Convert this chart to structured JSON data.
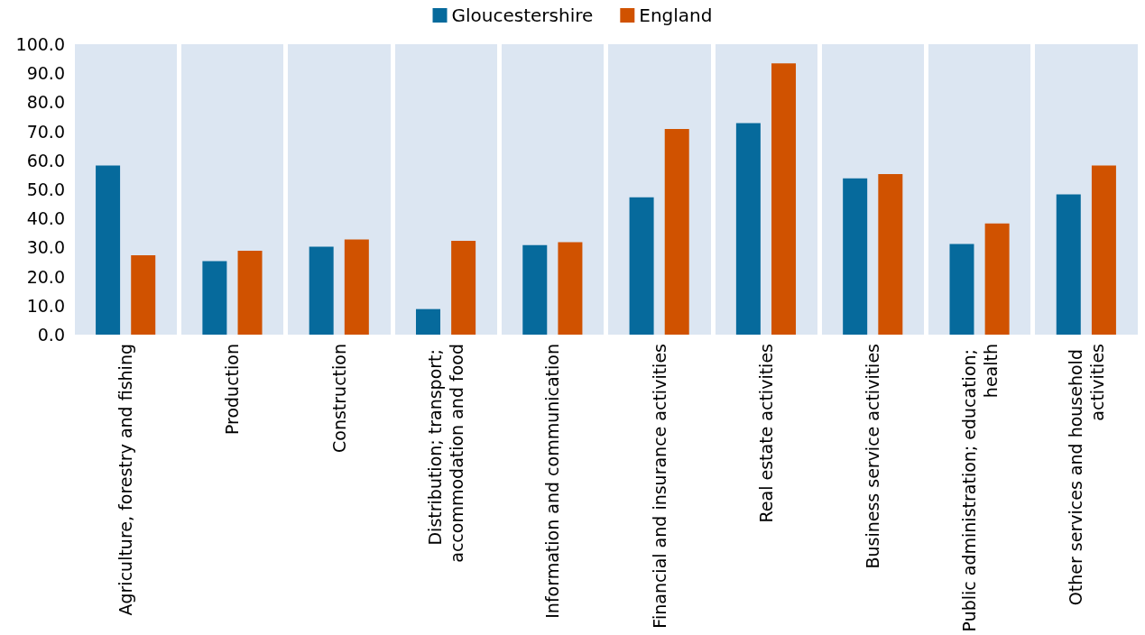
{
  "chart_data": {
    "type": "bar",
    "categories": [
      "Agriculture, forestry and fishing",
      "Production",
      "Construction",
      "Distribution; transport; accommodation and food",
      "Information and communication",
      "Financial and insurance activities",
      "Real estate activities",
      "Business service activities",
      "Public administration; education; health",
      "Other services and household activities"
    ],
    "series": [
      {
        "name": "Gloucestershire",
        "color": "#066a9c",
        "values": [
          58.2,
          25.3,
          30.3,
          8.8,
          30.8,
          47.3,
          72.8,
          53.8,
          31.2,
          48.3
        ]
      },
      {
        "name": "England",
        "color": "#d05200",
        "values": [
          27.3,
          28.9,
          32.8,
          32.3,
          31.8,
          70.8,
          93.4,
          55.3,
          38.3,
          58.2
        ]
      }
    ],
    "ylim": [
      0,
      100
    ],
    "yticks": [
      {
        "value": 0,
        "label": "0.0"
      },
      {
        "value": 10,
        "label": "10.0"
      },
      {
        "value": 20,
        "label": "20.0"
      },
      {
        "value": 30,
        "label": "30.0"
      },
      {
        "value": 40,
        "label": "40.0"
      },
      {
        "value": 50,
        "label": "50.0"
      },
      {
        "value": 60,
        "label": "60.0"
      },
      {
        "value": 70,
        "label": "70.0"
      },
      {
        "value": 80,
        "label": "80.0"
      },
      {
        "value": 90,
        "label": "90.0"
      },
      {
        "value": 100,
        "label": "100.0"
      }
    ],
    "grid": "x",
    "legend": "top"
  }
}
